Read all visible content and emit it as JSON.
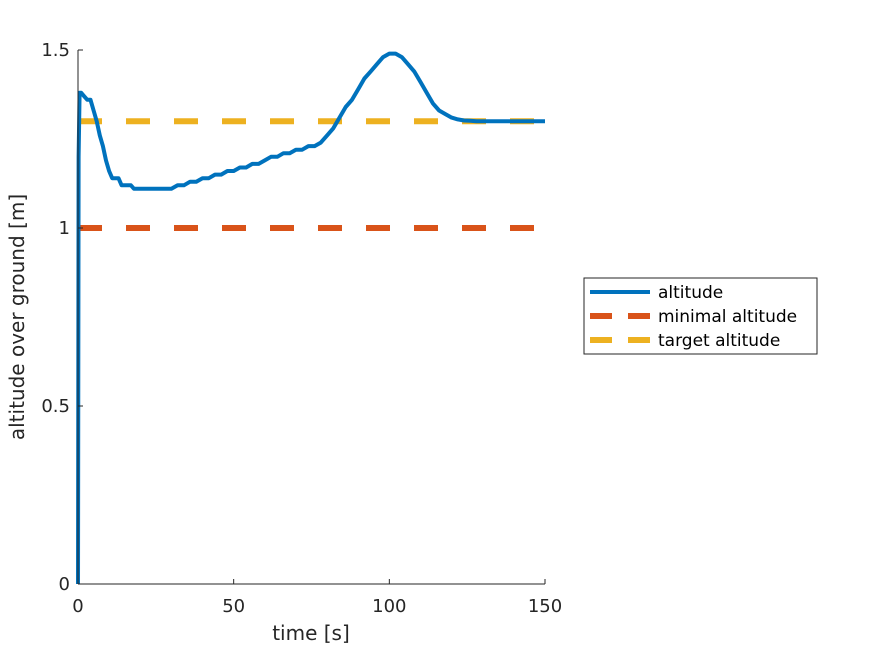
{
  "chart_data": {
    "type": "line",
    "xlabel": "time [s]",
    "ylabel": "altitude over ground [m]",
    "xlim": [
      0,
      150
    ],
    "ylim": [
      0,
      1.5
    ],
    "xticks": [
      0,
      50,
      100,
      150
    ],
    "xtick_labels": [
      "0",
      "50",
      "100",
      "150"
    ],
    "yticks": [
      0,
      0.5,
      1,
      1.5
    ],
    "ytick_labels": [
      "0",
      "0.5",
      "1",
      "1.5"
    ],
    "grid": false,
    "legend_position": "outside-right",
    "series": [
      {
        "name": "altitude",
        "style": "solid",
        "color": "#0072BD",
        "x": [
          0,
          0.2,
          0.5,
          1,
          2,
          3,
          4,
          5,
          6,
          7,
          8,
          9,
          10,
          11,
          12,
          13,
          14,
          15,
          16,
          17,
          18,
          19,
          20,
          22,
          24,
          26,
          28,
          30,
          32,
          34,
          36,
          38,
          40,
          42,
          44,
          46,
          48,
          50,
          52,
          54,
          56,
          58,
          60,
          62,
          64,
          66,
          68,
          70,
          72,
          74,
          76,
          78,
          80,
          82,
          84,
          86,
          88,
          90,
          92,
          94,
          96,
          98,
          100,
          102,
          104,
          106,
          108,
          110,
          112,
          114,
          116,
          118,
          120,
          122,
          124,
          126,
          128,
          130,
          135,
          140,
          145,
          150
        ],
        "y": [
          0,
          1.2,
          1.38,
          1.38,
          1.37,
          1.36,
          1.36,
          1.33,
          1.3,
          1.26,
          1.23,
          1.19,
          1.16,
          1.14,
          1.14,
          1.14,
          1.12,
          1.12,
          1.12,
          1.12,
          1.11,
          1.11,
          1.11,
          1.11,
          1.11,
          1.11,
          1.11,
          1.11,
          1.12,
          1.12,
          1.13,
          1.13,
          1.14,
          1.14,
          1.15,
          1.15,
          1.16,
          1.16,
          1.17,
          1.17,
          1.18,
          1.18,
          1.19,
          1.2,
          1.2,
          1.21,
          1.21,
          1.22,
          1.22,
          1.23,
          1.23,
          1.24,
          1.26,
          1.28,
          1.31,
          1.34,
          1.36,
          1.39,
          1.42,
          1.44,
          1.46,
          1.48,
          1.49,
          1.49,
          1.48,
          1.46,
          1.44,
          1.41,
          1.38,
          1.35,
          1.33,
          1.32,
          1.31,
          1.305,
          1.302,
          1.301,
          1.3,
          1.3,
          1.3,
          1.3,
          1.3,
          1.3
        ]
      },
      {
        "name": "minimal altitude",
        "style": "dashed",
        "color": "#D95319",
        "x": [
          0,
          147
        ],
        "y": [
          1.0,
          1.0
        ]
      },
      {
        "name": "target altitude",
        "style": "dashed",
        "color": "#EDB120",
        "x": [
          0,
          147
        ],
        "y": [
          1.3,
          1.3
        ]
      }
    ]
  }
}
